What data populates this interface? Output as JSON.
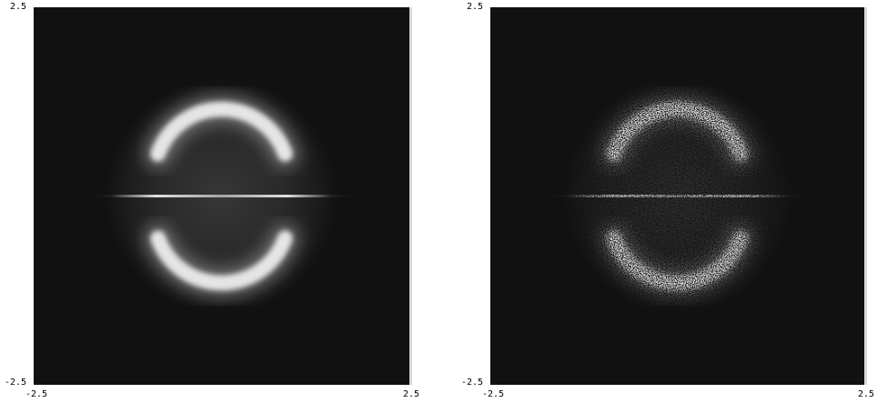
{
  "chart_data": [
    {
      "type": "heatmap",
      "title": "",
      "xlabel": "",
      "ylabel": "",
      "xlim": [
        -2.5,
        2.5
      ],
      "ylim": [
        -2.5,
        2.5
      ],
      "x_tick_labels": [
        "-2.5",
        "2.5"
      ],
      "y_tick_labels": [
        "2.5",
        "-2.5"
      ],
      "grid": false,
      "colormap": "grayscale",
      "background_color": "#111111",
      "rendering": "smooth",
      "features": {
        "upper_arc": {
          "center": [
            0.0,
            0.25
          ],
          "radius": 0.9,
          "angle_range_deg": [
            20,
            160
          ]
        },
        "lower_arc": {
          "center": [
            0.0,
            -0.25
          ],
          "radius": 0.9,
          "angle_range_deg": [
            200,
            340
          ]
        },
        "horizontal_line_y": 0.0,
        "halo_radius": 1.55
      }
    },
    {
      "type": "heatmap",
      "title": "",
      "xlabel": "",
      "ylabel": "",
      "xlim": [
        -2.5,
        2.5
      ],
      "ylim": [
        -2.5,
        2.5
      ],
      "x_tick_labels": [
        "-2.5",
        "2.5"
      ],
      "y_tick_labels": [
        "2.5",
        "-2.5"
      ],
      "grid": false,
      "colormap": "grayscale",
      "background_color": "#111111",
      "rendering": "sampled",
      "features": {
        "upper_arc": {
          "center": [
            0.0,
            0.25
          ],
          "radius": 0.9,
          "angle_range_deg": [
            20,
            160
          ]
        },
        "lower_arc": {
          "center": [
            0.0,
            -0.25
          ],
          "radius": 0.9,
          "angle_range_deg": [
            200,
            340
          ]
        },
        "horizontal_line_y": 0.0,
        "halo_radius": 1.55
      }
    }
  ]
}
